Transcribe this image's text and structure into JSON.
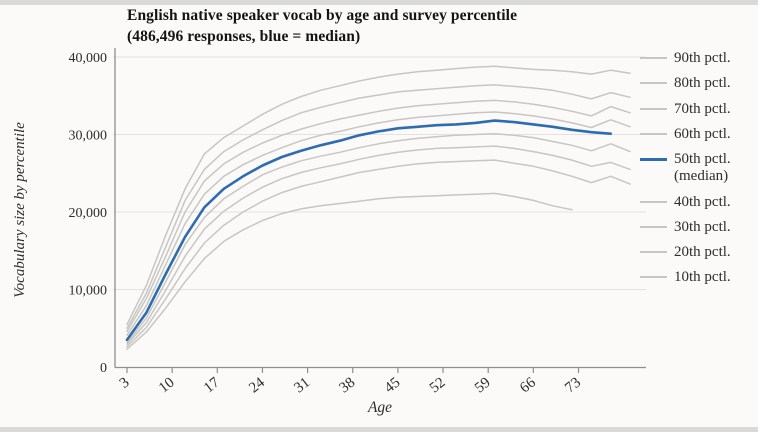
{
  "chart_data": {
    "type": "line",
    "title": "English native speaker vocab by age and survey percentile (486,496 responses, blue = median)",
    "xlabel": "Age",
    "ylabel": "Vocabulary size by percentile",
    "x": [
      3,
      6,
      9,
      12,
      15,
      18,
      21,
      24,
      27,
      30,
      33,
      36,
      39,
      42,
      45,
      48,
      51,
      54,
      57,
      60,
      63,
      66,
      69,
      72,
      75,
      78,
      81
    ],
    "xticks": [
      3,
      10,
      17,
      24,
      31,
      38,
      45,
      52,
      59,
      66,
      73
    ],
    "ylim": [
      0,
      40000
    ],
    "yticks": [
      0,
      10000,
      20000,
      30000,
      40000
    ],
    "ytick_labels": [
      "0",
      "10,000",
      "20,000",
      "30,000",
      "40,000"
    ],
    "grid": true,
    "legend_position": "right",
    "colors": {
      "percentile_gray": "#c7c6c3",
      "median_blue": "#2e6cb0"
    },
    "series": [
      {
        "name": "90th",
        "label": "90th pctl.",
        "color": "#c7c6c3",
        "emphasis": false,
        "values": [
          5500,
          10500,
          17000,
          23000,
          27500,
          29600,
          31100,
          32600,
          33900,
          34900,
          35700,
          36300,
          36900,
          37400,
          37800,
          38100,
          38300,
          38500,
          38700,
          38800,
          38600,
          38400,
          38300,
          38100,
          37800,
          38300,
          37900
        ]
      },
      {
        "name": "80th",
        "label": "80th pctl.",
        "color": "#c7c6c3",
        "emphasis": false,
        "values": [
          5000,
          9500,
          15500,
          21500,
          25500,
          27800,
          29300,
          30600,
          31800,
          32800,
          33500,
          34100,
          34700,
          35100,
          35500,
          35700,
          35900,
          36100,
          36300,
          36400,
          36200,
          36000,
          35700,
          35200,
          34600,
          35400,
          34800
        ]
      },
      {
        "name": "70th",
        "label": "70th pctl.",
        "color": "#c7c6c3",
        "emphasis": false,
        "values": [
          4600,
          8800,
          14300,
          20000,
          24000,
          26200,
          27700,
          28900,
          29900,
          30700,
          31400,
          32000,
          32500,
          33000,
          33400,
          33700,
          33900,
          34100,
          34300,
          34400,
          34200,
          33900,
          33500,
          33000,
          32400,
          33600,
          32800
        ]
      },
      {
        "name": "60th",
        "label": "60th pctl.",
        "color": "#c7c6c3",
        "emphasis": false,
        "values": [
          4100,
          7900,
          13200,
          18500,
          22300,
          24600,
          26100,
          27300,
          28300,
          29200,
          29900,
          30400,
          31000,
          31500,
          31900,
          32200,
          32400,
          32600,
          32800,
          32900,
          32700,
          32400,
          32000,
          31500,
          30900,
          31900,
          31000
        ]
      },
      {
        "name": "50th",
        "label": "50th pctl. (median)",
        "color": "#2e6cb0",
        "emphasis": true,
        "values": [
          3500,
          7000,
          12000,
          16800,
          20600,
          23000,
          24600,
          26000,
          27100,
          27900,
          28600,
          29200,
          29900,
          30400,
          30800,
          31000,
          31200,
          31300,
          31500,
          31800,
          31600,
          31300,
          31000,
          30600,
          30300,
          30100,
          null
        ]
      },
      {
        "name": "40th",
        "label": "40th pctl.",
        "color": "#c7c6c3",
        "emphasis": false,
        "values": [
          3100,
          6300,
          11000,
          15800,
          19300,
          21700,
          23300,
          24800,
          25800,
          26600,
          27200,
          27700,
          28300,
          28800,
          29200,
          29500,
          29700,
          29900,
          30000,
          30100,
          29900,
          29600,
          29100,
          28600,
          27900,
          28800,
          27800
        ]
      },
      {
        "name": "30th",
        "label": "30th pctl.",
        "color": "#c7c6c3",
        "emphasis": false,
        "values": [
          2900,
          5700,
          9900,
          14300,
          17800,
          20100,
          21800,
          23200,
          24300,
          25100,
          25700,
          26200,
          26800,
          27300,
          27700,
          28000,
          28200,
          28300,
          28400,
          28500,
          28200,
          27800,
          27300,
          26700,
          25900,
          26400,
          25500
        ]
      },
      {
        "name": "20th",
        "label": "20th pctl.",
        "color": "#c7c6c3",
        "emphasis": false,
        "values": [
          2600,
          5100,
          8800,
          12700,
          16000,
          18300,
          20000,
          21400,
          22500,
          23300,
          23900,
          24500,
          25100,
          25500,
          25900,
          26200,
          26400,
          26500,
          26600,
          26700,
          26300,
          25900,
          25300,
          24600,
          23800,
          24600,
          23600
        ]
      },
      {
        "name": "10th",
        "label": "10th pctl.",
        "color": "#c7c6c3",
        "emphasis": false,
        "values": [
          2300,
          4500,
          7600,
          11000,
          14000,
          16200,
          17700,
          18900,
          19800,
          20400,
          20800,
          21100,
          21400,
          21700,
          21900,
          22000,
          22100,
          22200,
          22300,
          22400,
          22000,
          21500,
          20800,
          20300,
          null,
          null,
          null
        ]
      }
    ]
  }
}
